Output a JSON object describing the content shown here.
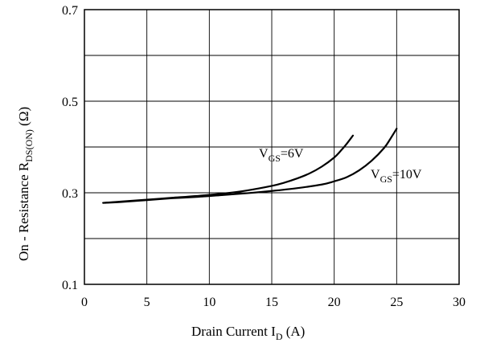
{
  "chart_data": {
    "type": "line",
    "xlabel": {
      "main": "Drain Current  I",
      "sub": "D",
      "suffix": " (A)"
    },
    "ylabel": {
      "main": "On - Resistance R",
      "sub": "DS(ON)",
      "suffix": " (Ω)"
    },
    "xlim": [
      0,
      30
    ],
    "ylim": [
      0.1,
      0.7
    ],
    "x_ticks": [
      "0",
      "5",
      "10",
      "15",
      "20",
      "25",
      "30"
    ],
    "y_ticks": [
      "0.1",
      "0.3",
      "0.5",
      "0.7"
    ],
    "grid": true,
    "series": [
      {
        "label": {
          "pre": "V",
          "sub": "GS",
          "post": "=6V"
        },
        "x": [
          1.5,
          3,
          5,
          7,
          9,
          11,
          13,
          15,
          16,
          17,
          18,
          19,
          20,
          20.5,
          21,
          21.5
        ],
        "y": [
          0.278,
          0.281,
          0.285,
          0.289,
          0.293,
          0.298,
          0.305,
          0.315,
          0.322,
          0.331,
          0.342,
          0.357,
          0.377,
          0.391,
          0.407,
          0.425
        ]
      },
      {
        "label": {
          "pre": "V",
          "sub": "GS",
          "post": "=10V"
        },
        "x": [
          1.5,
          3,
          5,
          7,
          9,
          11,
          13,
          15,
          17,
          19,
          20,
          21,
          22,
          23,
          24,
          24.5,
          25
        ],
        "y": [
          0.278,
          0.28,
          0.284,
          0.288,
          0.291,
          0.295,
          0.299,
          0.304,
          0.31,
          0.318,
          0.325,
          0.334,
          0.349,
          0.37,
          0.398,
          0.418,
          0.44
        ]
      }
    ]
  }
}
